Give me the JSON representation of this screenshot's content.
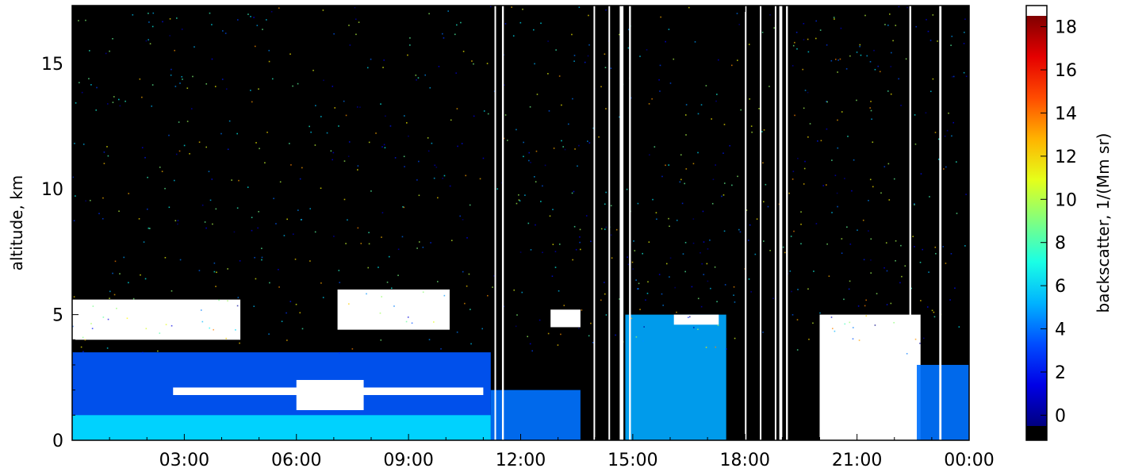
{
  "chart_data": {
    "type": "heatmap",
    "title": "",
    "xlabel": "",
    "ylabel": "altitude, km",
    "x_ticks": [
      "03:00",
      "06:00",
      "09:00",
      "12:00",
      "15:00",
      "18:00",
      "21:00",
      "00:00"
    ],
    "x_tick_hours": [
      3,
      6,
      9,
      12,
      15,
      18,
      21,
      24
    ],
    "xlim_hours": [
      0,
      24
    ],
    "y_ticks": [
      "0",
      "5",
      "10",
      "15"
    ],
    "y_tick_values": [
      0,
      5,
      10,
      15
    ],
    "ylim": [
      0,
      17.3
    ],
    "colorbar": {
      "label": "backscatter, 1/(Mm sr)",
      "ticks": [
        "0",
        "2",
        "4",
        "6",
        "8",
        "10",
        "12",
        "14",
        "16",
        "18"
      ],
      "tick_values": [
        0,
        2,
        4,
        6,
        8,
        10,
        12,
        14,
        16,
        18
      ],
      "range": [
        -0.5,
        18.5
      ],
      "colormap": "jet",
      "over_color": "#ffffff",
      "under_color": "#000000"
    },
    "grid": false,
    "background_color": "#000000",
    "saturated_color": "#ffffff",
    "missing_data_color": "#ffffff",
    "missing_data_gaps_hours": [
      [
        11.3,
        11.34
      ],
      [
        11.5,
        11.55
      ],
      [
        13.95,
        13.99
      ],
      [
        14.35,
        14.39
      ],
      [
        14.65,
        14.75
      ],
      [
        14.9,
        14.95
      ],
      [
        18.0,
        18.04
      ],
      [
        18.4,
        18.44
      ],
      [
        18.8,
        18.84
      ],
      [
        18.92,
        19.0
      ],
      [
        19.1,
        19.15
      ],
      [
        22.4,
        22.45
      ],
      [
        23.2,
        23.26
      ]
    ],
    "features": [
      {
        "kind": "boundary_layer",
        "start_h": 0,
        "end_h": 11.2,
        "top_km": 3.5,
        "level": 3.5
      },
      {
        "kind": "surface_layer",
        "start_h": 0,
        "end_h": 11.2,
        "top_km": 1.0,
        "level": 6
      },
      {
        "kind": "saturated_cloud",
        "start_h": 0,
        "end_h": 4.5,
        "base_km": 4.0,
        "top_km": 5.6
      },
      {
        "kind": "saturated_cloud",
        "start_h": 7.1,
        "end_h": 10.1,
        "base_km": 4.4,
        "top_km": 6.0
      },
      {
        "kind": "saturated_cloud",
        "start_h": 2.7,
        "end_h": 11.0,
        "base_km": 1.8,
        "top_km": 2.1
      },
      {
        "kind": "saturated_cloud",
        "start_h": 6.0,
        "end_h": 7.8,
        "base_km": 1.2,
        "top_km": 2.4
      },
      {
        "kind": "boundary_layer",
        "start_h": 11.2,
        "end_h": 13.6,
        "top_km": 2.0,
        "level": 4
      },
      {
        "kind": "saturated_cloud",
        "start_h": 12.8,
        "end_h": 13.6,
        "base_km": 4.5,
        "top_km": 5.2
      },
      {
        "kind": "boundary_layer",
        "start_h": 14.8,
        "end_h": 17.5,
        "top_km": 5.0,
        "level": 5
      },
      {
        "kind": "saturated_cloud",
        "start_h": 16.1,
        "end_h": 17.3,
        "base_km": 4.6,
        "top_km": 5.0
      },
      {
        "kind": "saturated_cloud",
        "start_h": 20.0,
        "end_h": 22.7,
        "base_km": 0,
        "top_km": 5.0
      },
      {
        "kind": "boundary_layer",
        "start_h": 22.6,
        "end_h": 24.0,
        "top_km": 3.0,
        "level": 4
      }
    ]
  }
}
